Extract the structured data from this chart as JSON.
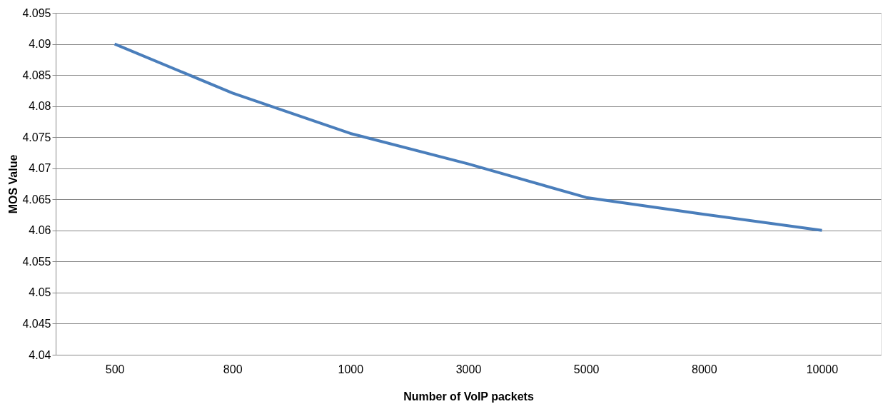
{
  "chart_data": {
    "type": "line",
    "xlabel": "Number of VoIP packets",
    "ylabel": "MOS Value",
    "categories": [
      "500",
      "800",
      "1000",
      "3000",
      "5000",
      "8000",
      "10000"
    ],
    "series": [
      {
        "color": "#4a7ebb",
        "values": [
          4.09,
          4.0821,
          4.0756,
          4.0707,
          4.0653,
          4.0626,
          4.06
        ]
      }
    ],
    "ylim": [
      4.04,
      4.095
    ],
    "yticks": [
      4.04,
      4.045,
      4.05,
      4.055,
      4.06,
      4.065,
      4.07,
      4.075,
      4.08,
      4.085,
      4.09,
      4.095
    ],
    "grid": "y",
    "legend": false,
    "marker": "none",
    "line_style": "solid"
  }
}
